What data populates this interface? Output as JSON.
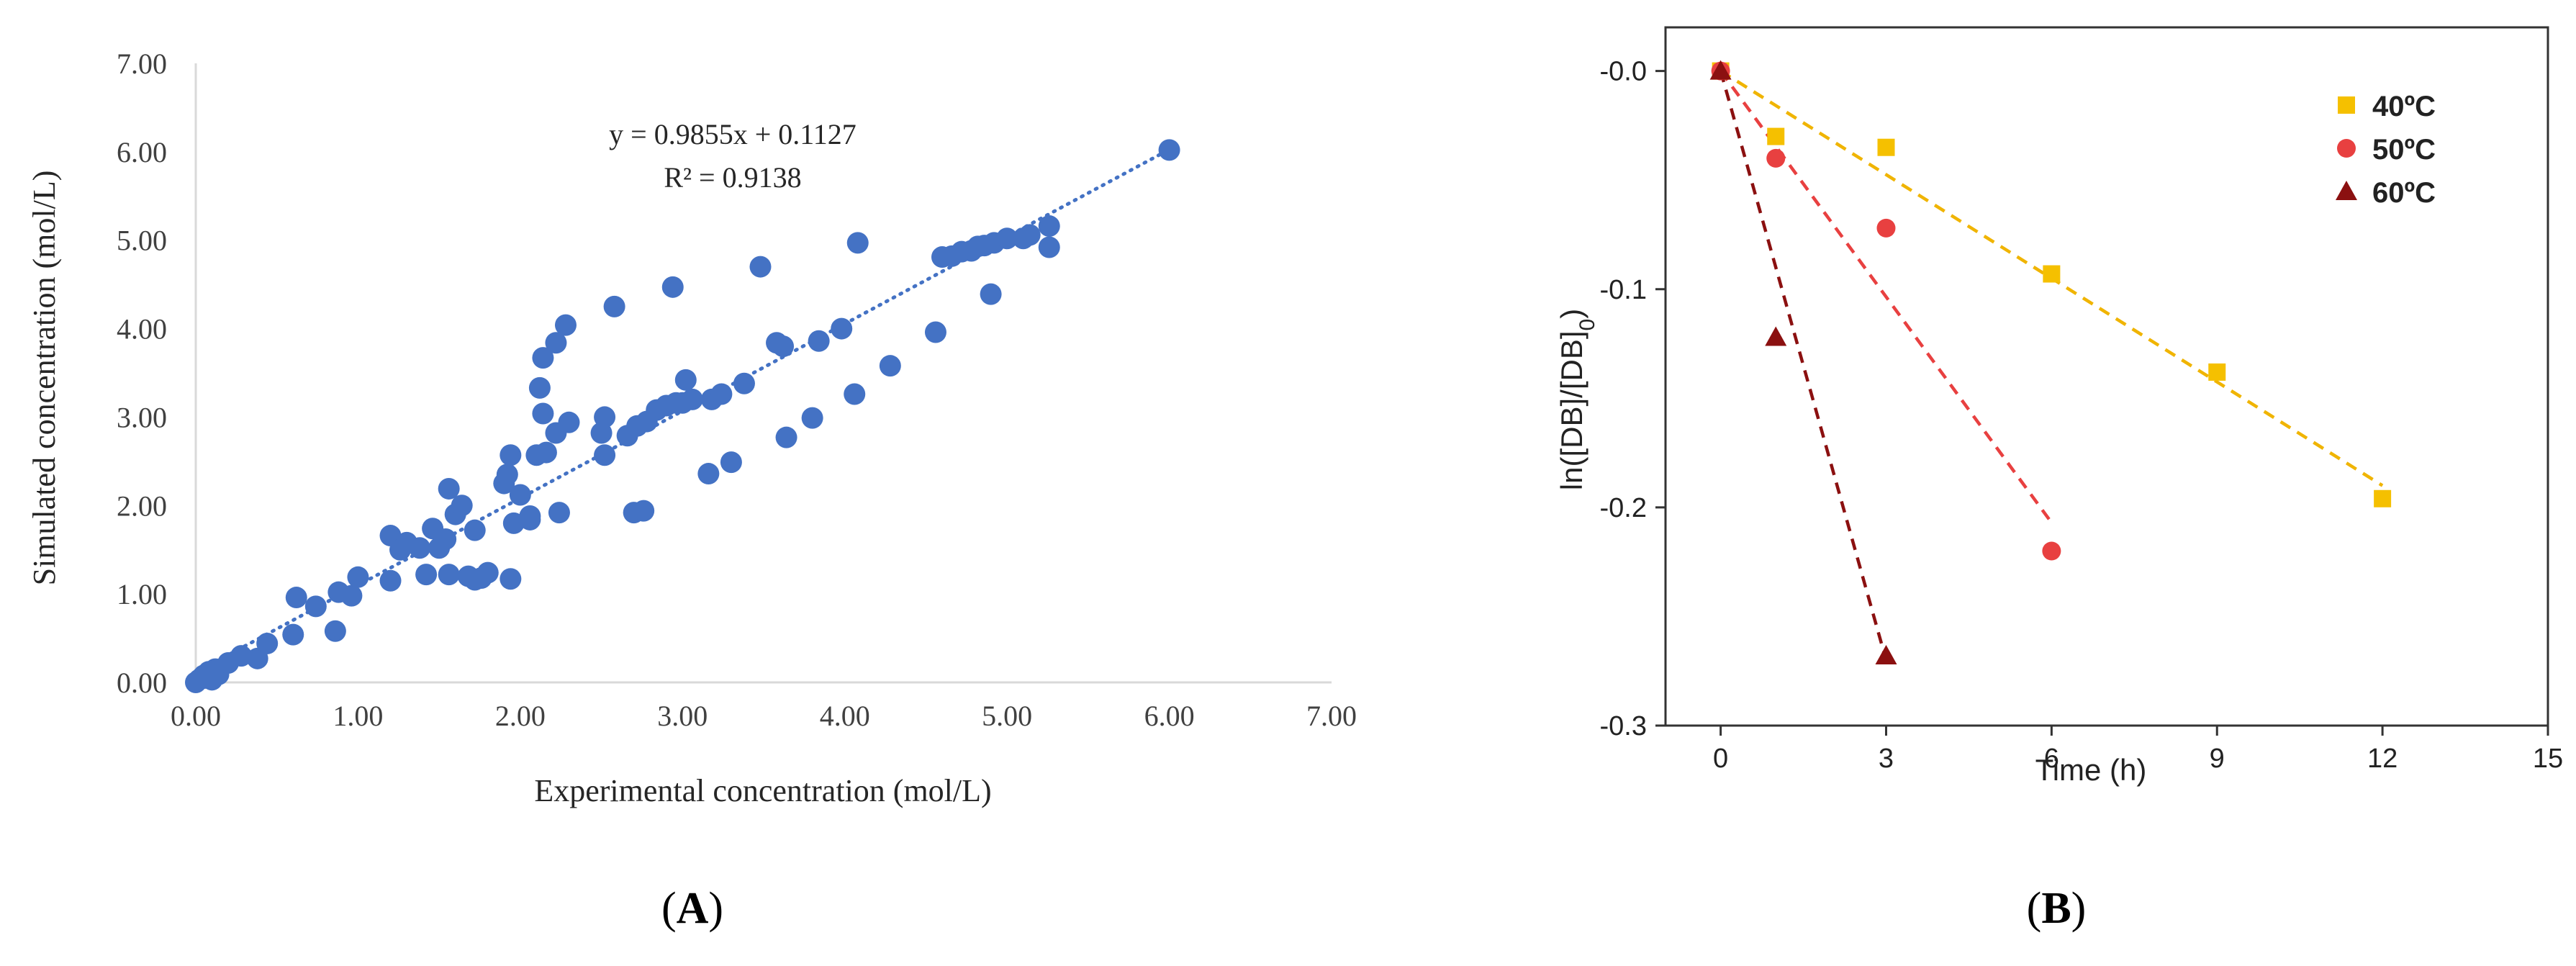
{
  "chart_data": [
    {
      "type": "scatter",
      "panel_label": "(A)",
      "panel_letter": "A",
      "xlabel": "Experimental concentration (mol/L)",
      "ylabel": "Simulated concentration (mol/L)",
      "xlim": [
        0,
        7
      ],
      "ylim": [
        0,
        7
      ],
      "xticks": [
        "0.00",
        "1.00",
        "2.00",
        "3.00",
        "4.00",
        "5.00",
        "6.00",
        "7.00"
      ],
      "yticks": [
        "0.00",
        "1.00",
        "2.00",
        "3.00",
        "4.00",
        "5.00",
        "6.00",
        "7.00"
      ],
      "equation": "y = 0.9855x + 0.1127",
      "r_squared": "R² = 0.9138",
      "trendline": {
        "slope": 0.9855,
        "intercept": 0.1127,
        "x_range": [
          0,
          6.0
        ]
      },
      "point_color": "#4472C4",
      "points": [
        [
          0.0,
          0.0
        ],
        [
          0.02,
          0.03
        ],
        [
          0.04,
          0.06
        ],
        [
          0.05,
          0.08
        ],
        [
          0.06,
          0.05
        ],
        [
          0.08,
          0.12
        ],
        [
          0.1,
          0.03
        ],
        [
          0.12,
          0.15
        ],
        [
          0.14,
          0.09
        ],
        [
          0.2,
          0.22
        ],
        [
          0.28,
          0.3
        ],
        [
          0.38,
          0.27
        ],
        [
          0.44,
          0.44
        ],
        [
          0.6,
          0.54
        ],
        [
          0.62,
          0.96
        ],
        [
          0.74,
          0.86
        ],
        [
          0.86,
          0.58
        ],
        [
          0.88,
          1.02
        ],
        [
          0.96,
          0.98
        ],
        [
          1.0,
          1.19
        ],
        [
          1.2,
          1.15
        ],
        [
          1.2,
          1.66
        ],
        [
          1.26,
          1.5
        ],
        [
          1.3,
          1.58
        ],
        [
          1.38,
          1.52
        ],
        [
          1.42,
          1.22
        ],
        [
          1.46,
          1.74
        ],
        [
          1.5,
          1.52
        ],
        [
          1.54,
          1.62
        ],
        [
          1.56,
          1.22
        ],
        [
          1.6,
          1.9
        ],
        [
          1.56,
          2.19
        ],
        [
          1.64,
          2.0
        ],
        [
          1.68,
          1.2
        ],
        [
          1.72,
          1.16
        ],
        [
          1.72,
          1.72
        ],
        [
          1.76,
          1.18
        ],
        [
          1.8,
          1.24
        ],
        [
          1.9,
          2.25
        ],
        [
          1.92,
          2.35
        ],
        [
          1.94,
          2.57
        ],
        [
          1.94,
          1.17
        ],
        [
          1.96,
          1.8
        ],
        [
          2.0,
          2.12
        ],
        [
          2.06,
          1.84
        ],
        [
          2.06,
          1.88
        ],
        [
          2.1,
          2.57
        ],
        [
          2.12,
          3.33
        ],
        [
          2.14,
          3.04
        ],
        [
          2.14,
          3.67
        ],
        [
          2.16,
          2.6
        ],
        [
          2.22,
          2.82
        ],
        [
          2.22,
          3.84
        ],
        [
          2.24,
          1.92
        ],
        [
          2.28,
          4.04
        ],
        [
          2.3,
          2.94
        ],
        [
          2.5,
          2.82
        ],
        [
          2.52,
          3.0
        ],
        [
          2.52,
          2.57
        ],
        [
          2.58,
          4.25
        ],
        [
          2.66,
          2.79
        ],
        [
          2.7,
          1.92
        ],
        [
          2.72,
          2.9
        ],
        [
          2.76,
          1.94
        ],
        [
          2.78,
          2.95
        ],
        [
          2.84,
          3.08
        ],
        [
          2.9,
          3.13
        ],
        [
          2.94,
          4.47
        ],
        [
          2.96,
          3.16
        ],
        [
          3.0,
          3.16
        ],
        [
          3.02,
          3.42
        ],
        [
          3.06,
          3.2
        ],
        [
          3.16,
          2.36
        ],
        [
          3.18,
          3.2
        ],
        [
          3.24,
          3.26
        ],
        [
          3.3,
          2.49
        ],
        [
          3.38,
          3.38
        ],
        [
          3.48,
          4.7
        ],
        [
          3.58,
          3.84
        ],
        [
          3.62,
          3.8
        ],
        [
          3.64,
          2.77
        ],
        [
          3.8,
          2.99
        ],
        [
          3.84,
          3.86
        ],
        [
          3.98,
          4.0
        ],
        [
          4.06,
          3.26
        ],
        [
          4.08,
          4.97
        ],
        [
          4.28,
          3.58
        ],
        [
          4.56,
          3.96
        ],
        [
          4.6,
          4.81
        ],
        [
          4.66,
          4.82
        ],
        [
          4.72,
          4.87
        ],
        [
          4.78,
          4.88
        ],
        [
          4.82,
          4.93
        ],
        [
          4.86,
          4.94
        ],
        [
          4.9,
          4.39
        ],
        [
          4.92,
          4.97
        ],
        [
          5.0,
          5.02
        ],
        [
          5.1,
          5.02
        ],
        [
          5.14,
          5.06
        ],
        [
          5.26,
          4.92
        ],
        [
          5.26,
          5.16
        ],
        [
          6.0,
          6.02
        ]
      ]
    },
    {
      "type": "scatter",
      "panel_label": "(B)",
      "panel_letter": "B",
      "xlabel": "Time (h)",
      "ylabel": "ln([DB]/[DB]0)",
      "ylabel_parts": {
        "main1": "ln([DB]/[DB]",
        "sub1": "0",
        "close": ")"
      },
      "xlim": [
        -1,
        15
      ],
      "ylim": [
        -0.3,
        0.02
      ],
      "xticks": [
        "0",
        "3",
        "6",
        "9",
        "12",
        "15"
      ],
      "yticks": [
        "-0.0",
        "-0.1",
        "-0.2",
        "-0.3"
      ],
      "series": [
        {
          "name": "40ºC",
          "color": "#F5C000",
          "line_color": "#F0B400",
          "marker": "square",
          "x": [
            0,
            1,
            3,
            6,
            9,
            12
          ],
          "y": [
            0.0,
            -0.03,
            -0.035,
            -0.093,
            -0.138,
            -0.196
          ],
          "fit": {
            "x": [
              0,
              12
            ],
            "y": [
              0.0,
              -0.19
            ]
          }
        },
        {
          "name": "50ºC",
          "color": "#E84040",
          "line_color": "#E84040",
          "marker": "circle",
          "x": [
            0,
            1,
            3,
            6
          ],
          "y": [
            0.0,
            -0.04,
            -0.072,
            -0.22
          ],
          "fit": {
            "x": [
              0,
              6
            ],
            "y": [
              0.0,
              -0.207
            ]
          }
        },
        {
          "name": "60ºC",
          "color": "#8B1010",
          "line_color": "#8B1010",
          "marker": "triangle",
          "x": [
            0,
            1,
            3
          ],
          "y": [
            0.0,
            -0.122,
            -0.268
          ],
          "fit": {
            "x": [
              0,
              3
            ],
            "y": [
              0.0,
              -0.27
            ]
          }
        }
      ]
    }
  ]
}
